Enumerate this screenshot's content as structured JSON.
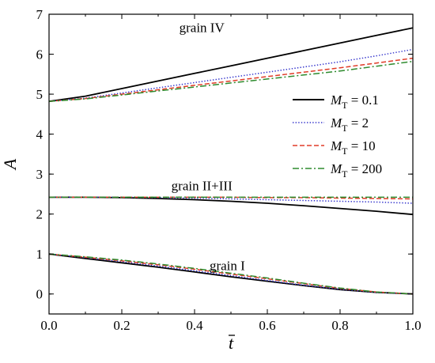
{
  "chart_data": {
    "type": "line",
    "xlabel": "t",
    "ylabel": "A",
    "xlim": [
      0.0,
      1.0
    ],
    "ylim": [
      -0.5,
      7.0
    ],
    "x_ticks": [
      0.0,
      0.2,
      0.4,
      0.6,
      0.8,
      1.0
    ],
    "x_tick_labels": [
      "0.0",
      "0.2",
      "0.4",
      "0.6",
      "0.8",
      "1.0"
    ],
    "y_ticks": [
      0,
      1,
      2,
      3,
      4,
      5,
      6,
      7
    ],
    "y_tick_labels": [
      "0",
      "1",
      "2",
      "3",
      "4",
      "5",
      "6",
      "7"
    ],
    "grid": false,
    "legend_position": "right-middle",
    "annotations": [
      {
        "text": "grain IV",
        "x": 0.42,
        "y": 6.55
      },
      {
        "text": "grain II+III",
        "x": 0.42,
        "y": 2.6
      },
      {
        "text": "grain I",
        "x": 0.49,
        "y": 0.6
      }
    ],
    "legend": [
      {
        "symbol": "M",
        "sub": "T",
        "value": " = 0.1",
        "color": "#000000",
        "style": "solid"
      },
      {
        "symbol": "M",
        "sub": "T",
        "value": " = 2",
        "color": "#3333cc",
        "style": "dotted"
      },
      {
        "symbol": "M",
        "sub": "T",
        "value": " = 10",
        "color": "#e03c28",
        "style": "dashed"
      },
      {
        "symbol": "M",
        "sub": "T",
        "value": " = 200",
        "color": "#2e8b2e",
        "style": "dashdot"
      }
    ],
    "x": [
      0.0,
      0.1,
      0.2,
      0.3,
      0.4,
      0.5,
      0.6,
      0.7,
      0.8,
      0.9,
      1.0
    ],
    "series": [
      {
        "group": "grain IV",
        "legend_index": 0,
        "values": [
          4.82,
          4.95,
          5.14,
          5.33,
          5.52,
          5.71,
          5.9,
          6.09,
          6.28,
          6.47,
          6.66
        ]
      },
      {
        "group": "grain IV",
        "legend_index": 1,
        "values": [
          4.82,
          4.9,
          5.03,
          5.16,
          5.29,
          5.42,
          5.55,
          5.68,
          5.81,
          5.96,
          6.12
        ]
      },
      {
        "group": "grain IV",
        "legend_index": 2,
        "values": [
          4.82,
          4.89,
          5.0,
          5.11,
          5.22,
          5.33,
          5.44,
          5.55,
          5.66,
          5.78,
          5.9
        ]
      },
      {
        "group": "grain IV",
        "legend_index": 3,
        "values": [
          4.82,
          4.88,
          4.98,
          5.08,
          5.18,
          5.28,
          5.38,
          5.48,
          5.58,
          5.7,
          5.82
        ]
      },
      {
        "group": "grain II+III",
        "legend_index": 0,
        "values": [
          2.42,
          2.42,
          2.41,
          2.39,
          2.36,
          2.32,
          2.27,
          2.21,
          2.14,
          2.07,
          1.99
        ]
      },
      {
        "group": "grain II+III",
        "legend_index": 1,
        "values": [
          2.42,
          2.42,
          2.42,
          2.41,
          2.4,
          2.38,
          2.36,
          2.34,
          2.32,
          2.3,
          2.27
        ]
      },
      {
        "group": "grain II+III",
        "legend_index": 2,
        "values": [
          2.42,
          2.42,
          2.42,
          2.42,
          2.42,
          2.42,
          2.41,
          2.41,
          2.4,
          2.39,
          2.38
        ]
      },
      {
        "group": "grain II+III",
        "legend_index": 3,
        "values": [
          2.42,
          2.42,
          2.42,
          2.42,
          2.42,
          2.42,
          2.42,
          2.42,
          2.42,
          2.42,
          2.42
        ]
      },
      {
        "group": "grain I",
        "legend_index": 0,
        "values": [
          1.0,
          0.89,
          0.78,
          0.67,
          0.55,
          0.43,
          0.32,
          0.21,
          0.11,
          0.04,
          0.0
        ]
      },
      {
        "group": "grain I",
        "legend_index": 1,
        "values": [
          1.0,
          0.91,
          0.81,
          0.7,
          0.58,
          0.46,
          0.34,
          0.22,
          0.12,
          0.04,
          0.0
        ]
      },
      {
        "group": "grain I",
        "legend_index": 2,
        "values": [
          1.0,
          0.92,
          0.83,
          0.73,
          0.62,
          0.5,
          0.38,
          0.26,
          0.14,
          0.05,
          0.0
        ]
      },
      {
        "group": "grain I",
        "legend_index": 3,
        "values": [
          1.0,
          0.93,
          0.85,
          0.75,
          0.64,
          0.52,
          0.4,
          0.27,
          0.15,
          0.05,
          0.0
        ]
      }
    ]
  }
}
